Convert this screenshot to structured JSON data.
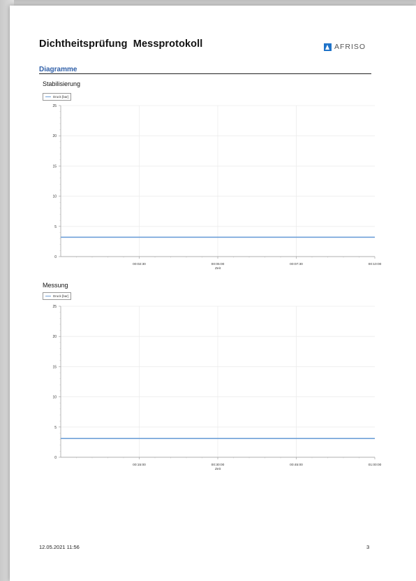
{
  "document": {
    "title": "Dichtheitsprüfung  Messprotokoll",
    "logo_text": "AFRISO",
    "section": "Diagramme",
    "footer_date": "12.05.2021 11:56",
    "page_number": "3"
  },
  "chart_data": [
    {
      "type": "line",
      "title": "Stabilisierung",
      "xlabel": "Zeit",
      "ylabel": "",
      "x_ticks": [
        "00:02:30",
        "00:05:00",
        "00:07:30",
        "00:10:00"
      ],
      "x_range_seconds": [
        0,
        600
      ],
      "ylim": [
        0,
        25
      ],
      "y_ticks": [
        0,
        5,
        10,
        15,
        20,
        25
      ],
      "grid": true,
      "legend": "top-left",
      "series": [
        {
          "name": "Druck [bar]",
          "color": "#6fa0d8",
          "x": [
            0,
            600
          ],
          "values": [
            3.2,
            3.2
          ]
        }
      ]
    },
    {
      "type": "line",
      "title": "Messung",
      "xlabel": "Zeit",
      "ylabel": "",
      "x_ticks": [
        "00:15:00",
        "00:30:00",
        "00:45:00",
        "01:00:00"
      ],
      "x_range_seconds": [
        0,
        3600
      ],
      "ylim": [
        0,
        25
      ],
      "y_ticks": [
        0,
        5,
        10,
        15,
        20,
        25
      ],
      "grid": true,
      "legend": "top-left",
      "series": [
        {
          "name": "Druck [bar]",
          "color": "#6fa0d8",
          "x": [
            0,
            3600
          ],
          "values": [
            3.1,
            3.1
          ]
        }
      ]
    }
  ]
}
